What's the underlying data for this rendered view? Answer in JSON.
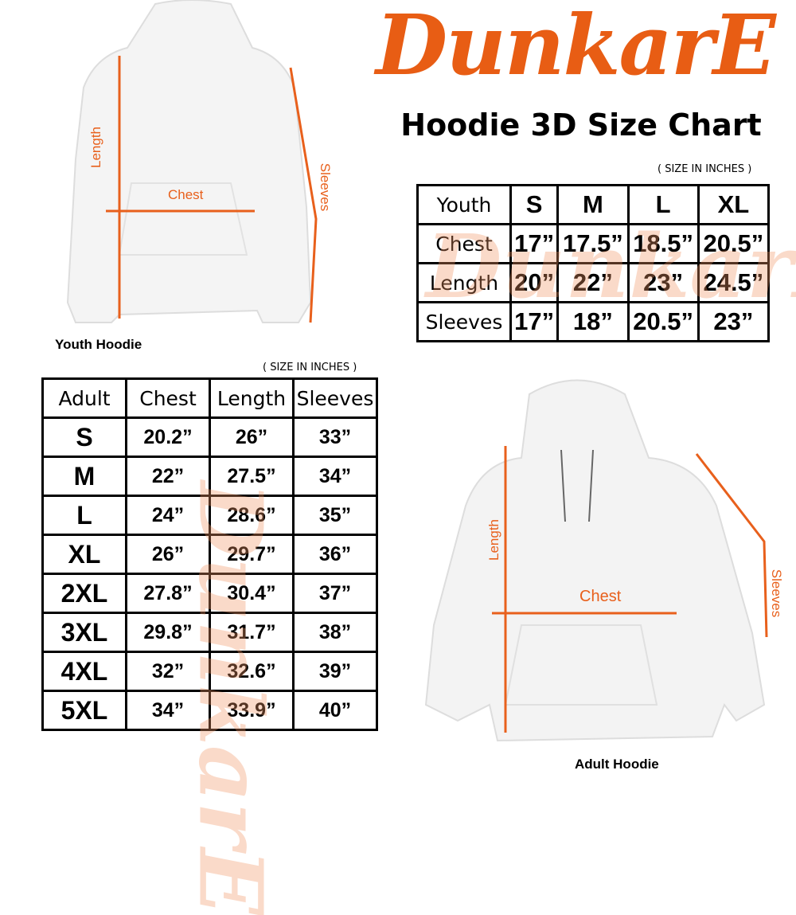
{
  "brand": {
    "logo_text": "DunkarE",
    "color": "#e85d14"
  },
  "title": "Hoodie 3D Size Chart",
  "youth": {
    "unit_note": "( SIZE IN INCHES )",
    "caption": "Youth Hoodie",
    "labels": {
      "length": "Length",
      "chest": "Chest",
      "sleeves": "Sleeves"
    },
    "table": {
      "headers": [
        "Youth",
        "S",
        "M",
        "L",
        "XL"
      ],
      "rows": [
        [
          "Chest",
          "17”",
          "17.5”",
          "18.5”",
          "20.5”"
        ],
        [
          "Length",
          "20”",
          "22”",
          "23”",
          "24.5”"
        ],
        [
          "Sleeves",
          "17”",
          "18”",
          "20.5”",
          "23”"
        ]
      ]
    }
  },
  "adult": {
    "unit_note": "( SIZE IN INCHES )",
    "caption": "Adult Hoodie",
    "labels": {
      "length": "Length",
      "chest": "Chest",
      "sleeves": "Sleeves"
    },
    "table": {
      "headers": [
        "Adult",
        "Chest",
        "Length",
        "Sleeves"
      ],
      "rows": [
        [
          "S",
          "20.2”",
          "26”",
          "33”"
        ],
        [
          "M",
          "22”",
          "27.5”",
          "34”"
        ],
        [
          "L",
          "24”",
          "28.6”",
          "35”"
        ],
        [
          "XL",
          "26”",
          "29.7”",
          "36”"
        ],
        [
          "2XL",
          "27.8”",
          "30.4”",
          "37”"
        ],
        [
          "3XL",
          "29.8”",
          "31.7”",
          "38”"
        ],
        [
          "4XL",
          "32”",
          "32.6”",
          "39”"
        ],
        [
          "5XL",
          "34”",
          "33.9”",
          "40”"
        ]
      ]
    }
  }
}
